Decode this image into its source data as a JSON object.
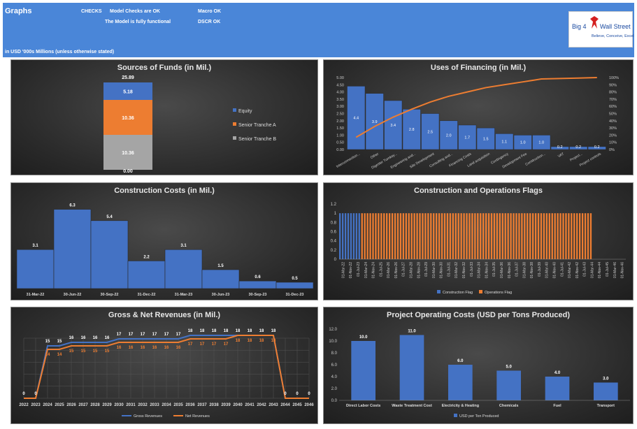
{
  "header": {
    "title": "Graphs",
    "checks_label": "CHECKS",
    "model_checks": "Model Checks are OK",
    "model_functional": "The Model is fully functional",
    "macro": "Macro OK",
    "dscr": "DSCR OK",
    "units_note": "in USD '000s Millions (unless otherwise stated)"
  },
  "logo": {
    "part1": "Big 4",
    "part2": "Wall Street",
    "tagline": "Believe, Conceive, Excel"
  },
  "colors": {
    "blue": "#4472c4",
    "orange": "#ed7d31",
    "gray": "#a5a5a5",
    "banner": "#4a86d8"
  },
  "chart_data": [
    {
      "id": "sources",
      "type": "bar",
      "stacked": true,
      "title": "Sources of Funds (in Mil.)",
      "total_label": "25.89",
      "zero_label": "0.00",
      "series": [
        {
          "name": "Senior Tranche B",
          "values": [
            10.36
          ]
        },
        {
          "name": "Senior Tranche A",
          "values": [
            10.36
          ]
        },
        {
          "name": "Equity",
          "values": [
            5.18
          ]
        }
      ],
      "legend": "right"
    },
    {
      "id": "uses",
      "type": "bar",
      "title": "Uses of Financing (in Mil.)",
      "categories": [
        "Interconnection...",
        "Other",
        "Digester Turnkey...",
        "Engineering and...",
        "Site Development",
        "Consulting and...",
        "Financing Costs",
        "Land acquisition",
        "Contingency",
        "Development Fee",
        "Construction...",
        "VAT",
        "Project...",
        "Project controls"
      ],
      "values": [
        4.4,
        3.9,
        3.4,
        2.8,
        2.5,
        2.0,
        1.7,
        1.5,
        1.1,
        1.0,
        1.0,
        0.2,
        0.2,
        0.2
      ],
      "cumulative_pct": [
        17,
        32,
        45,
        56,
        66,
        74,
        80,
        86,
        90,
        94,
        98,
        98.7,
        99.3,
        100
      ],
      "y_ticks": [
        "0.00",
        "0.50",
        "1.00",
        "1.50",
        "2.00",
        "2.50",
        "3.00",
        "3.50",
        "4.00",
        "4.50",
        "5.00"
      ],
      "y2_ticks": [
        "0%",
        "10%",
        "20%",
        "30%",
        "40%",
        "50%",
        "60%",
        "70%",
        "80%",
        "90%",
        "100%"
      ],
      "ylim": [
        0,
        5
      ]
    },
    {
      "id": "construction",
      "type": "bar",
      "title": "Construction Costs (in Mil.)",
      "categories": [
        "31-Mar-22",
        "30-Jun-22",
        "30-Sep-22",
        "31-Dec-22",
        "31-Mar-23",
        "30-Jun-23",
        "30-Sep-23",
        "31-Dec-23"
      ],
      "values": [
        3.1,
        6.3,
        5.4,
        2.2,
        3.1,
        1.5,
        0.6,
        0.5
      ],
      "ylim": [
        0,
        7
      ]
    },
    {
      "id": "flags",
      "type": "bar",
      "title": "Construction and Operations Flags",
      "y_ticks": [
        "0",
        "0.2",
        "0.4",
        "0.6",
        "0.8",
        "1",
        "1.2"
      ],
      "x_labels": [
        "01-Mar-22",
        "01-Nov-22",
        "01-Jul-23",
        "01-Mar-24",
        "01-Nov-24",
        "01-Jul-25",
        "01-Mar-26",
        "01-Nov-26",
        "01-Jul-27",
        "01-Mar-28",
        "01-Nov-28",
        "01-Jul-29",
        "01-Mar-30",
        "01-Nov-30",
        "01-Jul-31",
        "01-Mar-32",
        "01-Nov-32",
        "01-Jul-33",
        "01-Mar-34",
        "01-Nov-34",
        "01-Jul-35",
        "01-Mar-36",
        "01-Nov-36",
        "01-Jul-37",
        "01-Mar-38",
        "01-Nov-38",
        "01-Jul-39",
        "01-Mar-40",
        "01-Nov-40",
        "01-Jul-41",
        "01-Mar-42",
        "01-Nov-42",
        "01-Jul-43",
        "01-Mar-44",
        "01-Nov-44",
        "01-Jul-45",
        "01-Mar-46",
        "01-Nov-46"
      ],
      "construction_periods": 8,
      "operations_periods": 84,
      "empty_periods": 12,
      "series": [
        {
          "name": "Construction Flag"
        },
        {
          "name": "Operations Flag"
        }
      ],
      "ylim": [
        0,
        1.2
      ]
    },
    {
      "id": "revenues",
      "type": "line",
      "title": "Gross & Net Revenues (in Mil.)",
      "x": [
        "2022",
        "2023",
        "2024",
        "2025",
        "2026",
        "2027",
        "2028",
        "2029",
        "2030",
        "2031",
        "2032",
        "2033",
        "2034",
        "2035",
        "2036",
        "2037",
        "2038",
        "2039",
        "2040",
        "2041",
        "2042",
        "2043",
        "2044",
        "2045",
        "2046"
      ],
      "series": [
        {
          "name": "Gross Revenues",
          "values": [
            0,
            0,
            15,
            15,
            16,
            16,
            16,
            16,
            17,
            17,
            17,
            17,
            17,
            17,
            18,
            18,
            18,
            18,
            18,
            18,
            18,
            18,
            0,
            0,
            0
          ]
        },
        {
          "name": "Net Revenues",
          "values": [
            null,
            null,
            14,
            14,
            15,
            15,
            15,
            15,
            16,
            16,
            16,
            16,
            16,
            16,
            17,
            17,
            17,
            17,
            18,
            18,
            18,
            18,
            null,
            null,
            null
          ]
        }
      ],
      "ylim": [
        0,
        22
      ]
    },
    {
      "id": "opcosts",
      "type": "bar",
      "title": "Project Operating Costs (USD per Tons Produced)",
      "categories": [
        "Direct Labor Costs",
        "Waste Treatment Cost",
        "Electricity & Heating",
        "Chemicals",
        "Fuel",
        "Transport"
      ],
      "values": [
        10.0,
        11.0,
        6.0,
        5.0,
        4.0,
        3.0
      ],
      "y_ticks": [
        "0.0",
        "2.0",
        "4.0",
        "6.0",
        "8.0",
        "10.0",
        "12.0"
      ],
      "legend": "USD per Ton Produced",
      "ylim": [
        0,
        12
      ]
    }
  ]
}
